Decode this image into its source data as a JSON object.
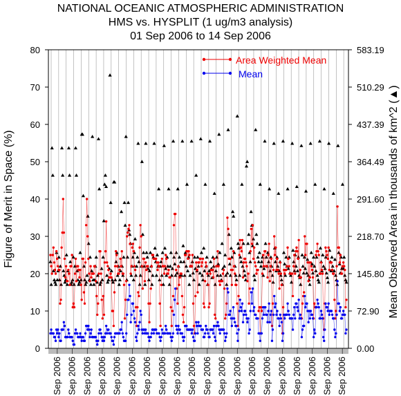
{
  "colors": {
    "area_weighted_mean": "#ee0000",
    "mean": "#0000ee",
    "observed_area": "#000000",
    "grid": "#999999",
    "xband": "#bbbbbb"
  },
  "chart_data": {
    "type": "line",
    "title": [
      "NATIONAL OCEANIC ATMOSPHERIC ADMINISTRATION",
      "HMS vs. HYSPLIT (1 ug/m3 analysis)",
      "01 Sep 2006 to 14 Sep 2006"
    ],
    "ylabel_left": "Figure of Merit in Space (%)",
    "ylabel_right": "Mean Observed Area in thousands of km^2 (▲)",
    "ylim_left": [
      0,
      80
    ],
    "yticks_left": [
      "0",
      "10",
      "20",
      "30",
      "40",
      "50",
      "60",
      "70",
      "80"
    ],
    "ylim_right": [
      0,
      656.1
    ],
    "yticks_right": [
      "0.00",
      "72.90",
      "145.80",
      "218.70",
      "291.60",
      "364.49",
      "437.39",
      "510.29",
      "583.19"
    ],
    "x_tick_label": "Sep 2006",
    "x_tick_count": 20,
    "grid": "vertical",
    "legend": {
      "placement": "top-right",
      "entries": [
        "Area Weighted Mean",
        "Mean"
      ]
    },
    "series": [
      {
        "name": "Area Weighted Mean",
        "color": "#ee0000",
        "values": [
          25,
          22,
          20,
          25,
          27,
          23,
          21,
          20,
          26,
          24,
          22,
          21,
          21,
          12,
          13,
          27,
          31,
          40,
          31,
          24,
          19,
          22,
          18,
          18,
          21,
          20,
          17,
          22,
          22,
          25,
          11,
          12,
          11,
          20,
          24,
          18,
          22,
          22,
          21,
          19,
          21,
          17,
          13,
          24,
          24,
          15,
          12,
          23,
          33,
          40,
          30,
          24,
          20,
          18,
          22,
          19,
          20,
          20,
          20,
          22,
          22,
          18,
          14,
          9,
          12,
          20,
          26,
          26,
          20,
          13,
          8,
          14,
          9,
          23,
          26,
          34,
          23,
          22,
          21,
          19,
          19,
          20,
          19,
          10,
          10,
          6,
          15,
          22,
          26,
          25,
          22,
          20,
          20,
          21,
          24,
          22,
          26,
          20,
          20,
          17,
          8,
          13,
          18,
          30,
          31,
          32,
          33,
          28,
          20,
          22,
          27,
          28,
          26,
          22,
          21,
          11,
          6,
          11,
          15,
          14,
          27,
          33,
          30,
          22,
          16,
          24,
          24,
          18,
          23,
          21,
          22,
          22,
          12,
          7,
          12,
          16,
          22,
          25,
          25,
          24,
          24,
          24,
          24,
          23,
          21,
          23,
          22,
          12,
          6,
          17,
          24,
          22,
          22,
          20,
          22,
          25,
          24,
          20,
          20,
          21,
          19,
          19,
          11,
          6,
          10,
          14,
          33,
          36,
          36,
          21,
          16,
          12,
          22,
          17,
          19,
          20,
          20,
          14,
          9,
          7,
          11,
          25,
          25,
          26,
          26,
          24,
          26,
          25,
          22,
          22,
          22,
          25,
          12,
          6,
          4,
          14,
          23,
          21,
          15,
          23,
          23,
          24,
          24,
          22,
          23,
          24,
          12,
          11,
          18,
          23,
          22,
          20,
          17,
          11,
          12,
          20,
          21,
          21,
          21,
          19,
          24,
          9,
          8,
          22,
          22,
          26,
          22,
          18,
          17,
          18,
          18,
          18,
          20,
          21,
          16,
          8,
          9,
          12,
          35,
          32,
          24,
          24,
          24,
          21,
          17,
          21,
          26,
          22,
          20,
          17,
          17,
          12,
          6,
          14,
          25,
          29,
          27,
          26,
          29,
          19,
          23,
          24,
          24,
          23,
          22,
          18,
          20,
          12,
          16,
          26,
          32,
          28,
          33,
          24,
          27,
          23,
          22,
          20,
          21,
          21,
          10,
          11,
          4,
          11,
          10,
          20,
          25,
          22,
          26,
          26,
          22,
          22,
          19,
          25,
          28,
          18,
          22,
          24,
          6,
          12,
          21,
          30,
          25,
          27,
          21,
          24,
          21,
          20,
          16,
          23,
          20,
          17,
          4,
          11,
          21,
          20,
          21,
          21,
          22,
          27,
          24,
          22,
          20,
          20,
          20,
          20,
          14,
          22,
          25,
          20,
          26,
          27,
          26,
          24,
          29,
          19,
          21,
          19,
          8,
          12,
          14,
          15,
          30,
          25,
          28,
          28,
          23,
          18,
          23,
          19,
          23,
          22,
          21,
          19,
          8,
          12,
          11,
          25,
          26,
          28,
          26,
          25,
          20,
          20,
          23,
          21,
          20,
          8,
          5,
          12,
          27,
          26,
          25,
          24,
          27,
          21,
          23,
          23,
          23,
          21,
          20,
          20,
          13,
          8,
          10,
          22,
          38,
          27,
          27,
          23,
          25,
          20,
          20,
          22,
          23,
          22,
          21,
          11,
          13
        ]
      },
      {
        "name": "Mean",
        "color": "#0000ee",
        "values": [
          4,
          5,
          4,
          4,
          4,
          3,
          3,
          2,
          5,
          4,
          5,
          3,
          4,
          2,
          2,
          5,
          5,
          5,
          7,
          6,
          3,
          3,
          3,
          3,
          5,
          4,
          3,
          3,
          3,
          3,
          2,
          1,
          1,
          4,
          5,
          4,
          4,
          3,
          3,
          3,
          4,
          3,
          2,
          3,
          3,
          2,
          2,
          4,
          6,
          6,
          5,
          6,
          5,
          3,
          4,
          5,
          3,
          3,
          3,
          3,
          3,
          3,
          2,
          1,
          2,
          4,
          5,
          5,
          4,
          3,
          2,
          3,
          2,
          3,
          4,
          6,
          4,
          5,
          5,
          4,
          4,
          4,
          3,
          2,
          2,
          1,
          3,
          4,
          4,
          4,
          4,
          4,
          4,
          4,
          5,
          5,
          7,
          4,
          3,
          2,
          2,
          2,
          4,
          9,
          13,
          13,
          17,
          14,
          7,
          9,
          12,
          12,
          10,
          8,
          7,
          3,
          2,
          4,
          6,
          5,
          7,
          10,
          9,
          5,
          4,
          5,
          5,
          4,
          5,
          4,
          4,
          4,
          3,
          2,
          3,
          3,
          4,
          5,
          5,
          4,
          5,
          5,
          5,
          4,
          4,
          4,
          4,
          3,
          2,
          3,
          5,
          4,
          4,
          4,
          4,
          6,
          5,
          4,
          4,
          4,
          4,
          4,
          3,
          2,
          3,
          4,
          9,
          13,
          16,
          6,
          5,
          4,
          6,
          5,
          5,
          4,
          4,
          4,
          3,
          2,
          3,
          6,
          6,
          6,
          5,
          5,
          5,
          5,
          5,
          5,
          4,
          5,
          3,
          2,
          2,
          4,
          7,
          6,
          4,
          7,
          6,
          6,
          6,
          5,
          5,
          5,
          3,
          3,
          4,
          6,
          5,
          5,
          4,
          3,
          3,
          5,
          5,
          5,
          5,
          4,
          6,
          3,
          2,
          6,
          6,
          7,
          6,
          5,
          4,
          5,
          5,
          5,
          5,
          5,
          4,
          2,
          3,
          4,
          16,
          15,
          9,
          9,
          10,
          8,
          6,
          8,
          11,
          8,
          7,
          6,
          6,
          4,
          2,
          5,
          10,
          13,
          11,
          10,
          12,
          7,
          9,
          10,
          10,
          9,
          8,
          7,
          8,
          4,
          5,
          10,
          15,
          12,
          16,
          10,
          11,
          9,
          9,
          8,
          8,
          8,
          4,
          4,
          2,
          4,
          4,
          8,
          11,
          9,
          11,
          11,
          9,
          9,
          7,
          10,
          12,
          7,
          9,
          10,
          2,
          5,
          9,
          14,
          11,
          12,
          9,
          10,
          8,
          8,
          6,
          9,
          8,
          7,
          2,
          4,
          9,
          8,
          9,
          9,
          9,
          12,
          10,
          9,
          8,
          8,
          8,
          8,
          5,
          9,
          11,
          8,
          12,
          12,
          11,
          10,
          13,
          8,
          9,
          8,
          3,
          5,
          6,
          6,
          14,
          11,
          12,
          12,
          10,
          7,
          10,
          8,
          10,
          9,
          9,
          8,
          3,
          5,
          4,
          11,
          11,
          13,
          12,
          11,
          8,
          8,
          10,
          9,
          8,
          3,
          2,
          5,
          12,
          11,
          11,
          10,
          12,
          9,
          10,
          10,
          10,
          9,
          8,
          8,
          5,
          3,
          4,
          9,
          18,
          12,
          12,
          10,
          11,
          8,
          8,
          9,
          10,
          9,
          9,
          4,
          5
        ]
      },
      {
        "name": "Mean Observed Area",
        "axis": "right",
        "marker": "triangle",
        "color": "#000000",
        "values": [
          190,
          140,
          440,
          380,
          170,
          150,
          145,
          140,
          210,
          150,
          170,
          200,
          150,
          180,
          140,
          440,
          380,
          170,
          160,
          145,
          150,
          205,
          140,
          170,
          440,
          380,
          190,
          140,
          145,
          150,
          200,
          140,
          180,
          440,
          380,
          170,
          150,
          140,
          145,
          210,
          150,
          470,
          470,
          335,
          180,
          150,
          140,
          145,
          160,
          290,
          230,
          150,
          200,
          140,
          170,
          465,
          150,
          140,
          150,
          180,
          200,
          145,
          160,
          460,
          350,
          140,
          145,
          175,
          150,
          200,
          280,
          360,
          380,
          355,
          160,
          145,
          150,
          175,
          600,
          320,
          170,
          150,
          145,
          365,
          365,
          150,
          190,
          210,
          160,
          180,
          140,
          150,
          170,
          300,
          180,
          160,
          200,
          320,
          270,
          465,
          150,
          200,
          320,
          260,
          250,
          230,
          160,
          180,
          200,
          150,
          210,
          240,
          160,
          180,
          200,
          450,
          190,
          140,
          160,
          180,
          410,
          250,
          210,
          180,
          140,
          450,
          210,
          200,
          175,
          150,
          170,
          210,
          180,
          140,
          160,
          200,
          450,
          220,
          190,
          160,
          205,
          180,
          350,
          150,
          180,
          190,
          160,
          210,
          140,
          445,
          220,
          175,
          160,
          200,
          180,
          350,
          140,
          180,
          210,
          160,
          175,
          455,
          200,
          185,
          160,
          210,
          165,
          350,
          180,
          200,
          160,
          190,
          160,
          455,
          225,
          190,
          160,
          210,
          180,
          360,
          170,
          200,
          140,
          160,
          180,
          455,
          190,
          165,
          150,
          200,
          175,
          380,
          170,
          200,
          180,
          140,
          165,
          460,
          210,
          160,
          150,
          220,
          170,
          360,
          180,
          200,
          140,
          160,
          170,
          455,
          190,
          175,
          155,
          200,
          180,
          340,
          140,
          170,
          200,
          160,
          185,
          470,
          210,
          160,
          150,
          230,
          175,
          360,
          180,
          205,
          160,
          140,
          165,
          480,
          250,
          185,
          160,
          220,
          200,
          300,
          290,
          210,
          180,
          160,
          150,
          510,
          230,
          220,
          160,
          200,
          190,
          360,
          180,
          230,
          170,
          160,
          150,
          400,
          410,
          230,
          250,
          210,
          190,
          300,
          270,
          225,
          240,
          160,
          150,
          480,
          250,
          230,
          200,
          190,
          210,
          360,
          180,
          190,
          200,
          160,
          175,
          455,
          230,
          200,
          180,
          210,
          190,
          350,
          170,
          200,
          180,
          160,
          145,
          450,
          220,
          190,
          170,
          200,
          180,
          340,
          170,
          190,
          160,
          150,
          140,
          455,
          210,
          185,
          160,
          200,
          180,
          350,
          175,
          200,
          165,
          160,
          145,
          450,
          215,
          190,
          170,
          205,
          180,
          355,
          170,
          200,
          160,
          155,
          140,
          445,
          205,
          180,
          165,
          200,
          175,
          345,
          165,
          195,
          160,
          150,
          140,
          450,
          210,
          185,
          165,
          200,
          180,
          360,
          170,
          200,
          160,
          150,
          145,
          455,
          220,
          190,
          170,
          205,
          180,
          350,
          175,
          200,
          165,
          155,
          145,
          450,
          215,
          190,
          170,
          200,
          180,
          340,
          170,
          195,
          160,
          150,
          140,
          445,
          210,
          185,
          165,
          200,
          175,
          360,
          175,
          200,
          160,
          150,
          145
        ]
      }
    ]
  }
}
